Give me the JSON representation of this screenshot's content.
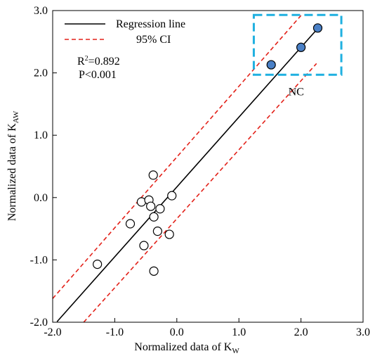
{
  "chart_data": {
    "type": "scatter",
    "xlabel": {
      "main": "Normalized data of K",
      "sub": "W"
    },
    "ylabel": {
      "main": "Normalized data of K",
      "sub": "AW"
    },
    "xlim": [
      -2.0,
      3.0
    ],
    "ylim": [
      -2.0,
      3.0
    ],
    "x_ticks": [
      "-2.0",
      "-1.0",
      "0.0",
      "1.0",
      "2.0",
      "3.0"
    ],
    "y_ticks": [
      "-2.0",
      "-1.0",
      "0.0",
      "1.0",
      "2.0",
      "3.0"
    ],
    "grid": false,
    "legend": {
      "position": "top-left",
      "entries": [
        {
          "label": "Regression line",
          "color": "#000000",
          "style": "solid"
        },
        {
          "label": "95% CI",
          "color": "#e32119",
          "style": "dashed"
        }
      ]
    },
    "stats": {
      "r2_prefix": "R",
      "r2_sup": "2",
      "r2_value": "=0.892",
      "p_text": "P<0.001"
    },
    "highlight": {
      "label": "NC",
      "color": "#1fb0e0",
      "x_range": [
        1.24,
        2.65
      ],
      "y_range": [
        1.97,
        2.93
      ]
    },
    "regression": {
      "slope": 1.12,
      "intercept": 0.17,
      "x_range": [
        -1.93,
        2.28
      ],
      "color": "#000000"
    },
    "ci_upper": {
      "x_range": [
        -2.0,
        2.0
      ],
      "y_range": [
        -1.62,
        2.92
      ],
      "color": "#e32119"
    },
    "ci_lower": {
      "x_range": [
        -1.5,
        2.25
      ],
      "y_range": [
        -2.0,
        2.15
      ],
      "color": "#e32119"
    },
    "series": [
      {
        "style": "open",
        "points": [
          [
            -1.28,
            -1.07
          ],
          [
            -0.75,
            -0.42
          ],
          [
            -0.57,
            -0.07
          ],
          [
            -0.53,
            -0.77
          ],
          [
            -0.45,
            -0.04
          ],
          [
            -0.42,
            -0.14
          ],
          [
            -0.38,
            0.36
          ],
          [
            -0.37,
            -0.31
          ],
          [
            -0.37,
            -1.18
          ],
          [
            -0.31,
            -0.54
          ],
          [
            -0.27,
            -0.18
          ],
          [
            -0.12,
            -0.59
          ],
          [
            -0.08,
            0.03
          ]
        ],
        "fill": "#ffffff"
      },
      {
        "style": "filled",
        "points": [
          [
            1.52,
            2.13
          ],
          [
            2.0,
            2.41
          ],
          [
            2.27,
            2.72
          ]
        ],
        "fill": "#4a80c6"
      }
    ]
  }
}
